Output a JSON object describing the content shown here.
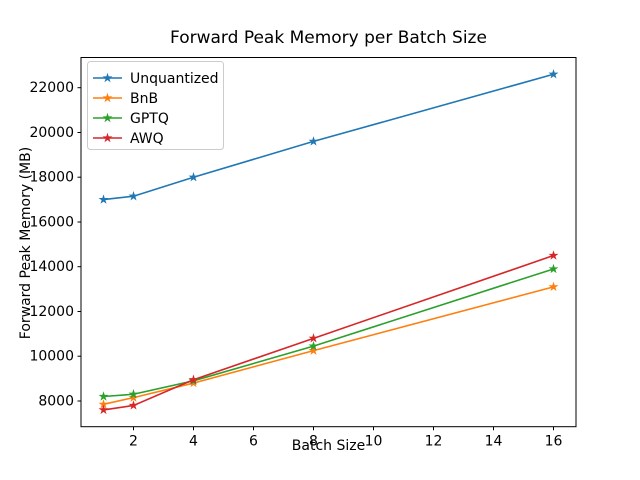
{
  "chart_data": {
    "type": "line",
    "title": "Forward Peak Memory per Batch Size",
    "xlabel": "Batch Size",
    "ylabel": "Forward Peak Memory (MB)",
    "x": [
      1,
      2,
      4,
      8,
      16
    ],
    "series": [
      {
        "name": "Unquantized",
        "color": "#1f77b4",
        "values": [
          17000,
          17150,
          18000,
          19600,
          22600
        ]
      },
      {
        "name": "BnB",
        "color": "#ff7f0e",
        "values": [
          7850,
          8150,
          8800,
          10250,
          13100
        ]
      },
      {
        "name": "GPTQ",
        "color": "#2ca02c",
        "values": [
          8200,
          8300,
          8900,
          10450,
          13900
        ]
      },
      {
        "name": "AWQ",
        "color": "#d62728",
        "values": [
          7600,
          7800,
          8950,
          10800,
          14500
        ]
      }
    ],
    "xticks": [
      2,
      4,
      6,
      8,
      10,
      12,
      14,
      16
    ],
    "yticks": [
      8000,
      10000,
      12000,
      14000,
      16000,
      18000,
      20000,
      22000
    ],
    "xlim": [
      0.25,
      16.75
    ],
    "ylim": [
      6850,
      23350
    ],
    "marker": "star",
    "grid": false,
    "legend_position": "upper-left",
    "axis_color": "#000000",
    "legend_border_color": "#cccccc",
    "background_color": "#ffffff"
  }
}
